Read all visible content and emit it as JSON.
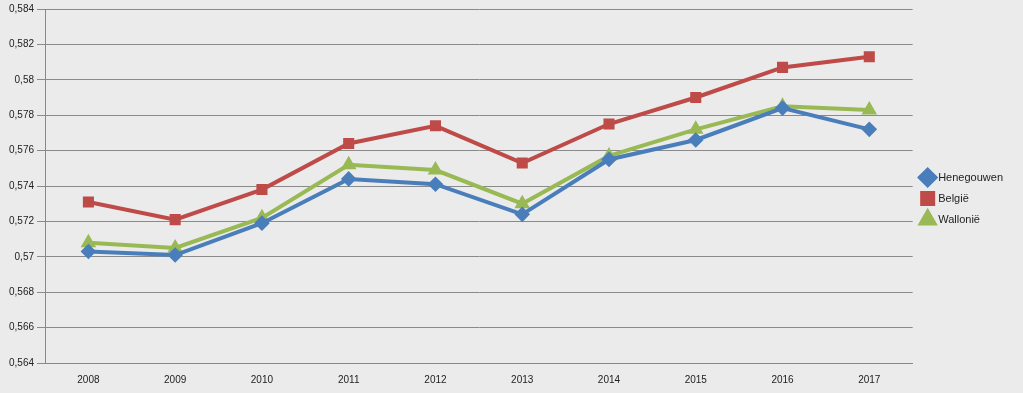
{
  "chart_data": {
    "type": "line",
    "categories": [
      "2008",
      "2009",
      "2010",
      "2011",
      "2012",
      "2013",
      "2014",
      "2015",
      "2016",
      "2017"
    ],
    "series": [
      {
        "name": "Henegouwen",
        "color": "#4a7ebb",
        "marker": "diamond",
        "values": [
          0.5703,
          0.5701,
          0.5719,
          0.5744,
          0.5741,
          0.5724,
          0.5755,
          0.5766,
          0.5784,
          0.5772
        ]
      },
      {
        "name": "België",
        "color": "#be4b48",
        "marker": "square",
        "values": [
          0.5731,
          0.5721,
          0.5738,
          0.5764,
          0.5774,
          0.5753,
          0.5775,
          0.579,
          0.5807,
          0.5813
        ]
      },
      {
        "name": "Wallonië",
        "color": "#98b954",
        "marker": "triangle",
        "values": [
          0.5708,
          0.5705,
          0.5722,
          0.5752,
          0.5749,
          0.573,
          0.5757,
          0.5772,
          0.5785,
          0.5783
        ]
      }
    ],
    "ylim": [
      0.564,
      0.584
    ],
    "yticks": [
      {
        "value": 0.564,
        "label": "0,564"
      },
      {
        "value": 0.566,
        "label": "0,566"
      },
      {
        "value": 0.568,
        "label": "0,568"
      },
      {
        "value": 0.57,
        "label": "0,57"
      },
      {
        "value": 0.572,
        "label": "0,572"
      },
      {
        "value": 0.574,
        "label": "0,574"
      },
      {
        "value": 0.576,
        "label": "0,576"
      },
      {
        "value": 0.578,
        "label": "0,578"
      },
      {
        "value": 0.58,
        "label": "0,58"
      },
      {
        "value": 0.582,
        "label": "0,582"
      },
      {
        "value": 0.584,
        "label": "0,584"
      }
    ],
    "grid": true,
    "legend": "right"
  }
}
